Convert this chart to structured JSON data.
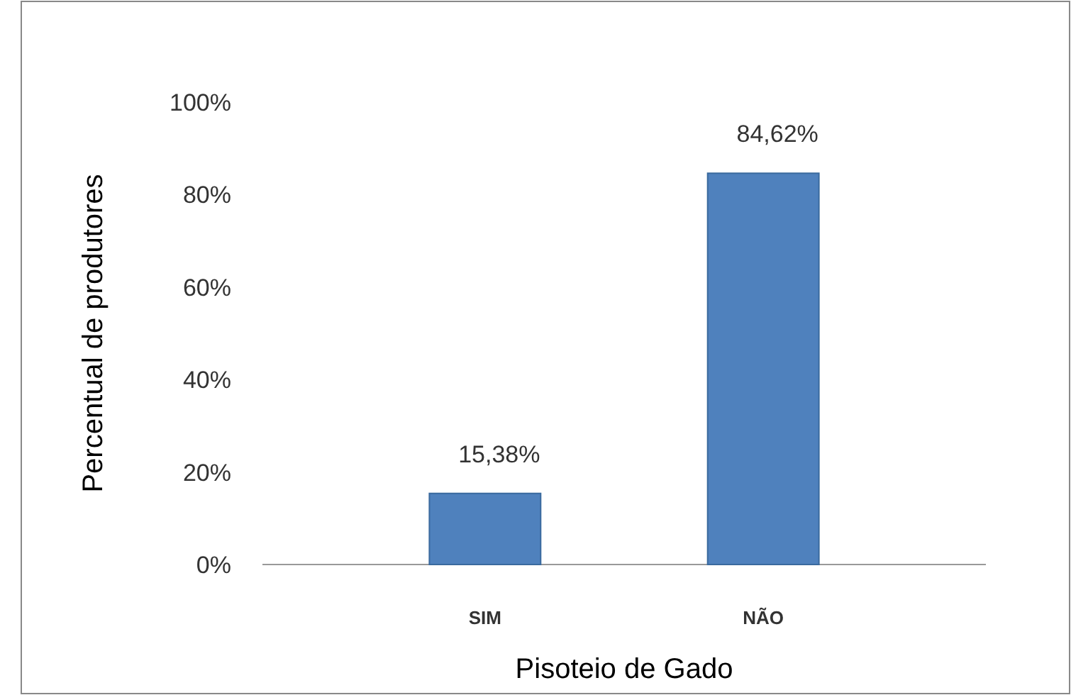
{
  "chart_data": {
    "type": "bar",
    "xlabel": "Pisoteio de Gado",
    "ylabel": "Percentual de produtores",
    "categories": [
      "SIM",
      "NÃO"
    ],
    "values": [
      15.38,
      84.62
    ],
    "value_labels": [
      "15,38%",
      "84,62%"
    ],
    "color": "#4f81bd",
    "ylim": [
      0,
      100
    ],
    "yticks": [
      {
        "value": 0,
        "label": "0%"
      },
      {
        "value": 20,
        "label": "20%"
      },
      {
        "value": 40,
        "label": "40%"
      },
      {
        "value": 60,
        "label": "60%"
      },
      {
        "value": 80,
        "label": "80%"
      },
      {
        "value": 100,
        "label": "100%"
      }
    ],
    "grid": false
  }
}
